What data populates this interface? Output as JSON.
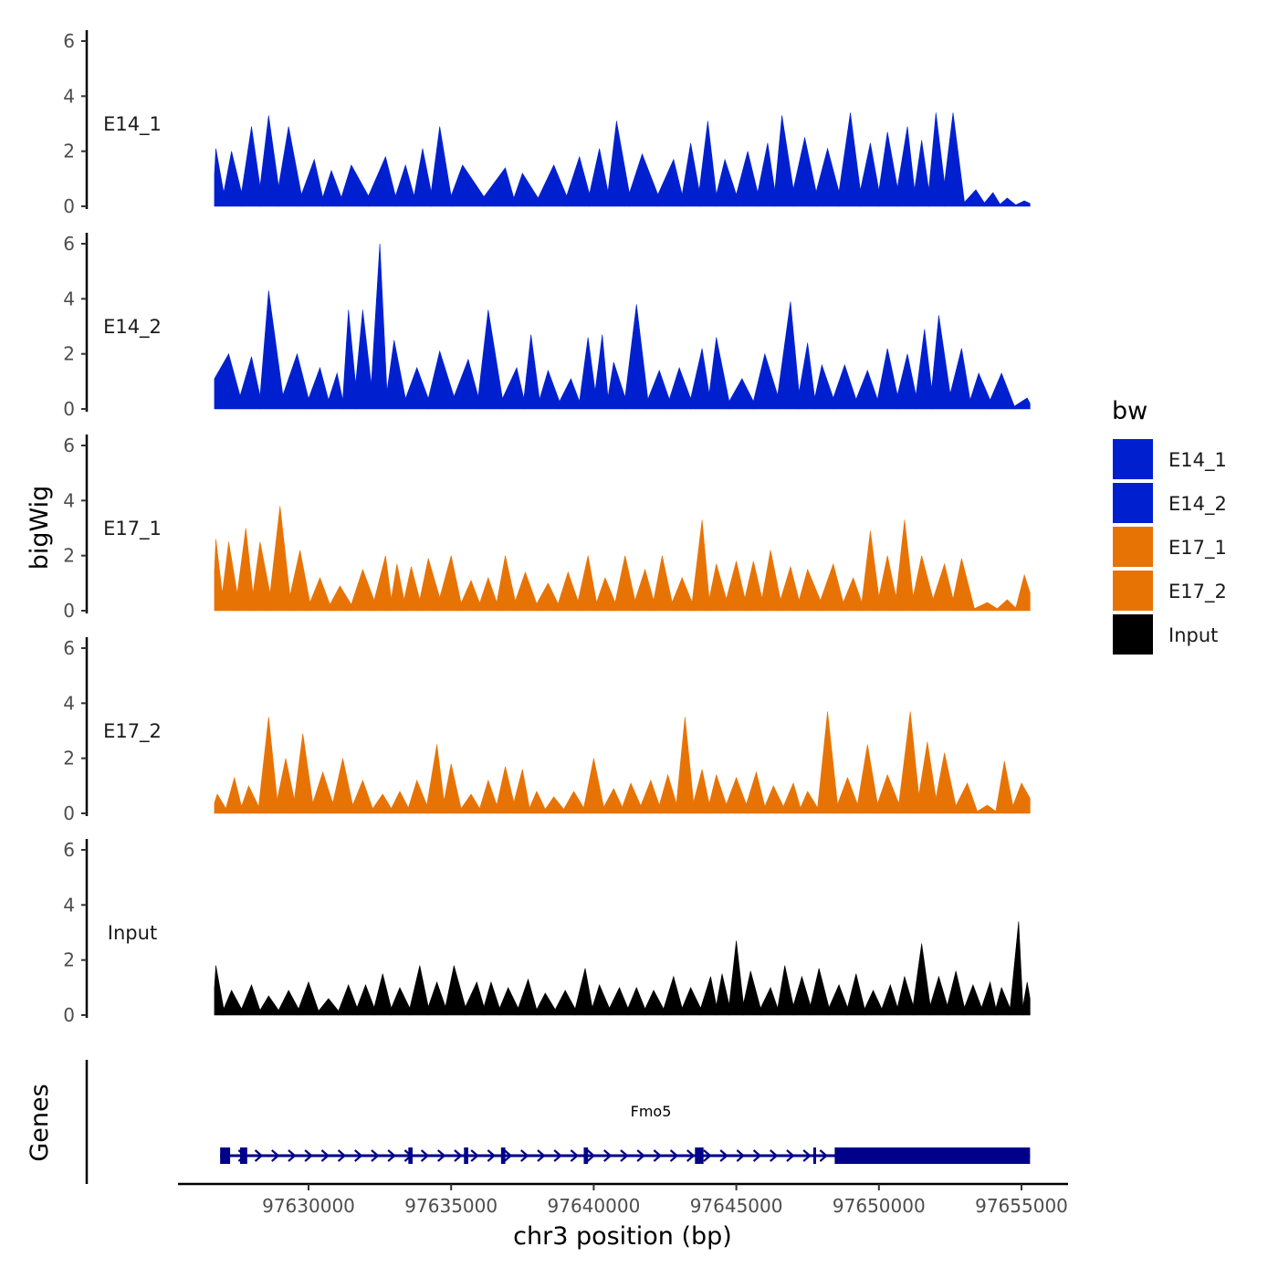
{
  "chart_data": {
    "type": "area",
    "ylabel": "bigWig",
    "xlabel": "chr3 position (bp)",
    "ylim": [
      0,
      6
    ],
    "yticks": [
      0,
      2,
      4,
      6
    ],
    "xlim": [
      97624000,
      97655500
    ],
    "xticks": [
      97630000,
      97635000,
      97640000,
      97645000,
      97650000,
      97655000
    ],
    "xtick_labels": [
      "97630000",
      "97635000",
      "97640000",
      "97645000",
      "97650000",
      "97655000"
    ],
    "region": [
      97626700,
      97655300
    ],
    "legend": {
      "title": "bw",
      "position": "right",
      "entries": [
        {
          "name": "E14_1",
          "color": "#0020d0"
        },
        {
          "name": "E14_2",
          "color": "#0020d0"
        },
        {
          "name": "E17_1",
          "color": "#e87305"
        },
        {
          "name": "E17_2",
          "color": "#e87305"
        },
        {
          "name": "Input",
          "color": "#000000"
        }
      ]
    },
    "series": [
      {
        "name": "E14_1",
        "color": "#0020d0",
        "peaks": [
          [
            97626750,
            2.1
          ],
          [
            97627300,
            2.0
          ],
          [
            97628000,
            2.9
          ],
          [
            97628600,
            3.3
          ],
          [
            97629300,
            2.9
          ],
          [
            97630200,
            1.7
          ],
          [
            97630800,
            1.3
          ],
          [
            97631500,
            1.5
          ],
          [
            97632700,
            1.8
          ],
          [
            97633400,
            1.5
          ],
          [
            97634000,
            2.1
          ],
          [
            97634600,
            2.9
          ],
          [
            97635400,
            1.5
          ],
          [
            97636900,
            1.4
          ],
          [
            97637500,
            1.2
          ],
          [
            97638600,
            1.5
          ],
          [
            97639500,
            1.8
          ],
          [
            97640200,
            2.1
          ],
          [
            97640800,
            3.1
          ],
          [
            97641700,
            1.9
          ],
          [
            97642800,
            1.7
          ],
          [
            97643400,
            2.3
          ],
          [
            97644000,
            3.1
          ],
          [
            97644600,
            1.7
          ],
          [
            97645400,
            2.0
          ],
          [
            97646100,
            2.3
          ],
          [
            97646600,
            3.3
          ],
          [
            97647400,
            2.5
          ],
          [
            97648200,
            2.1
          ],
          [
            97649000,
            3.4
          ],
          [
            97649700,
            2.3
          ],
          [
            97650300,
            2.7
          ],
          [
            97651000,
            2.9
          ],
          [
            97651500,
            2.4
          ],
          [
            97652000,
            3.4
          ],
          [
            97652600,
            3.4
          ],
          [
            97653400,
            0.6
          ],
          [
            97654000,
            0.5
          ],
          [
            97654500,
            0.3
          ],
          [
            97655100,
            0.2
          ]
        ]
      },
      {
        "name": "E14_2",
        "color": "#0020d0",
        "peaks": [
          [
            97627200,
            2.0
          ],
          [
            97628000,
            1.9
          ],
          [
            97628600,
            4.3
          ],
          [
            97629600,
            2.0
          ],
          [
            97630400,
            1.5
          ],
          [
            97631000,
            1.3
          ],
          [
            97631400,
            3.6
          ],
          [
            97631900,
            3.6
          ],
          [
            97632500,
            6.0
          ],
          [
            97633000,
            2.5
          ],
          [
            97633800,
            1.5
          ],
          [
            97634600,
            2.1
          ],
          [
            97635600,
            1.8
          ],
          [
            97636300,
            3.6
          ],
          [
            97637300,
            1.5
          ],
          [
            97637800,
            2.7
          ],
          [
            97638400,
            1.4
          ],
          [
            97639200,
            1.1
          ],
          [
            97639800,
            2.6
          ],
          [
            97640300,
            2.7
          ],
          [
            97640700,
            1.7
          ],
          [
            97641500,
            3.8
          ],
          [
            97642300,
            1.4
          ],
          [
            97643000,
            1.5
          ],
          [
            97643800,
            2.2
          ],
          [
            97644300,
            2.6
          ],
          [
            97645200,
            1.1
          ],
          [
            97646000,
            2.0
          ],
          [
            97646900,
            3.9
          ],
          [
            97647500,
            2.4
          ],
          [
            97648000,
            1.6
          ],
          [
            97648800,
            1.6
          ],
          [
            97649600,
            1.4
          ],
          [
            97650300,
            2.2
          ],
          [
            97651000,
            2.0
          ],
          [
            97651600,
            2.9
          ],
          [
            97652100,
            3.4
          ],
          [
            97652900,
            2.2
          ],
          [
            97653500,
            1.3
          ],
          [
            97654300,
            1.3
          ],
          [
            97655200,
            0.4
          ]
        ]
      },
      {
        "name": "E17_1",
        "color": "#e87305",
        "peaks": [
          [
            97626750,
            2.6
          ],
          [
            97627200,
            2.5
          ],
          [
            97627800,
            3.0
          ],
          [
            97628300,
            2.5
          ],
          [
            97629000,
            3.8
          ],
          [
            97629700,
            2.2
          ],
          [
            97630400,
            1.2
          ],
          [
            97631100,
            0.9
          ],
          [
            97631900,
            1.5
          ],
          [
            97632700,
            2.0
          ],
          [
            97633100,
            1.7
          ],
          [
            97633600,
            1.6
          ],
          [
            97634200,
            1.9
          ],
          [
            97635000,
            2.0
          ],
          [
            97635700,
            1.1
          ],
          [
            97636300,
            1.2
          ],
          [
            97636900,
            2.0
          ],
          [
            97637600,
            1.4
          ],
          [
            97638400,
            1.0
          ],
          [
            97639100,
            1.4
          ],
          [
            97639800,
            2.0
          ],
          [
            97640400,
            1.2
          ],
          [
            97641100,
            2.0
          ],
          [
            97641800,
            1.5
          ],
          [
            97642400,
            2.0
          ],
          [
            97643100,
            1.2
          ],
          [
            97643800,
            3.3
          ],
          [
            97644300,
            1.7
          ],
          [
            97645000,
            1.8
          ],
          [
            97645600,
            1.8
          ],
          [
            97646200,
            2.2
          ],
          [
            97646900,
            1.6
          ],
          [
            97647500,
            1.5
          ],
          [
            97648400,
            1.7
          ],
          [
            97649100,
            1.2
          ],
          [
            97649700,
            2.9
          ],
          [
            97650300,
            2.0
          ],
          [
            97650900,
            3.3
          ],
          [
            97651500,
            2.0
          ],
          [
            97652300,
            1.7
          ],
          [
            97652900,
            1.9
          ],
          [
            97653800,
            0.3
          ],
          [
            97654500,
            0.4
          ],
          [
            97655100,
            1.3
          ]
        ]
      },
      {
        "name": "E17_2",
        "color": "#e87305",
        "peaks": [
          [
            97626800,
            0.7
          ],
          [
            97627400,
            1.3
          ],
          [
            97627900,
            1.0
          ],
          [
            97628600,
            3.5
          ],
          [
            97629200,
            2.0
          ],
          [
            97629800,
            2.9
          ],
          [
            97630500,
            1.5
          ],
          [
            97631200,
            2.0
          ],
          [
            97631900,
            1.2
          ],
          [
            97632600,
            0.7
          ],
          [
            97633200,
            0.8
          ],
          [
            97633800,
            1.2
          ],
          [
            97634500,
            2.5
          ],
          [
            97635000,
            1.8
          ],
          [
            97635700,
            0.7
          ],
          [
            97636300,
            1.2
          ],
          [
            97636900,
            1.7
          ],
          [
            97637500,
            1.6
          ],
          [
            97638000,
            0.8
          ],
          [
            97638600,
            0.6
          ],
          [
            97639300,
            0.8
          ],
          [
            97640000,
            2.0
          ],
          [
            97640700,
            0.9
          ],
          [
            97641300,
            1.1
          ],
          [
            97642000,
            1.2
          ],
          [
            97642600,
            1.4
          ],
          [
            97643200,
            3.5
          ],
          [
            97643800,
            1.6
          ],
          [
            97644300,
            1.4
          ],
          [
            97645000,
            1.3
          ],
          [
            97645700,
            1.5
          ],
          [
            97646300,
            1.0
          ],
          [
            97647000,
            1.1
          ],
          [
            97647500,
            0.8
          ],
          [
            97648200,
            3.7
          ],
          [
            97648900,
            1.3
          ],
          [
            97649600,
            2.5
          ],
          [
            97650300,
            1.4
          ],
          [
            97651100,
            3.7
          ],
          [
            97651700,
            2.6
          ],
          [
            97652300,
            2.2
          ],
          [
            97653100,
            1.1
          ],
          [
            97653800,
            0.3
          ],
          [
            97654400,
            1.9
          ],
          [
            97655000,
            1.1
          ]
        ]
      },
      {
        "name": "Input",
        "color": "#000000",
        "peaks": [
          [
            97626750,
            1.8
          ],
          [
            97627300,
            0.9
          ],
          [
            97628000,
            1.1
          ],
          [
            97628600,
            0.7
          ],
          [
            97629300,
            0.9
          ],
          [
            97630000,
            1.2
          ],
          [
            97630700,
            0.6
          ],
          [
            97631400,
            1.1
          ],
          [
            97632000,
            1.1
          ],
          [
            97632600,
            1.5
          ],
          [
            97633200,
            1.0
          ],
          [
            97633900,
            1.8
          ],
          [
            97634500,
            1.2
          ],
          [
            97635100,
            1.8
          ],
          [
            97635900,
            1.2
          ],
          [
            97636400,
            1.2
          ],
          [
            97637000,
            1.0
          ],
          [
            97637700,
            1.3
          ],
          [
            97638300,
            0.8
          ],
          [
            97639000,
            0.9
          ],
          [
            97639700,
            1.7
          ],
          [
            97640200,
            1.1
          ],
          [
            97640900,
            1.0
          ],
          [
            97641500,
            1.0
          ],
          [
            97642100,
            0.9
          ],
          [
            97642800,
            1.4
          ],
          [
            97643400,
            1.0
          ],
          [
            97644100,
            1.4
          ],
          [
            97644500,
            1.5
          ],
          [
            97645000,
            2.7
          ],
          [
            97645500,
            1.6
          ],
          [
            97646200,
            1.0
          ],
          [
            97646700,
            1.8
          ],
          [
            97647300,
            1.4
          ],
          [
            97647900,
            1.7
          ],
          [
            97648600,
            1.1
          ],
          [
            97649200,
            1.5
          ],
          [
            97649800,
            0.9
          ],
          [
            97650400,
            1.1
          ],
          [
            97650900,
            1.4
          ],
          [
            97651500,
            2.6
          ],
          [
            97652100,
            1.4
          ],
          [
            97652700,
            1.6
          ],
          [
            97653300,
            1.1
          ],
          [
            97653900,
            1.2
          ],
          [
            97654300,
            1.0
          ],
          [
            97654900,
            3.4
          ],
          [
            97655200,
            1.2
          ]
        ]
      }
    ],
    "genes": {
      "label": "Genes",
      "items": [
        {
          "name": "Fmo5",
          "start": 97626900,
          "end": 97655300,
          "strand": "+",
          "exons": [
            [
              97626900,
              97627250
            ],
            [
              97627600,
              97627850
            ],
            [
              97633500,
              97633650
            ],
            [
              97635450,
              97635600
            ],
            [
              97636750,
              97636900
            ],
            [
              97639650,
              97639800
            ],
            [
              97643550,
              97643850
            ],
            [
              97647700,
              97647780
            ],
            [
              97648450,
              97655300
            ]
          ]
        }
      ]
    }
  }
}
